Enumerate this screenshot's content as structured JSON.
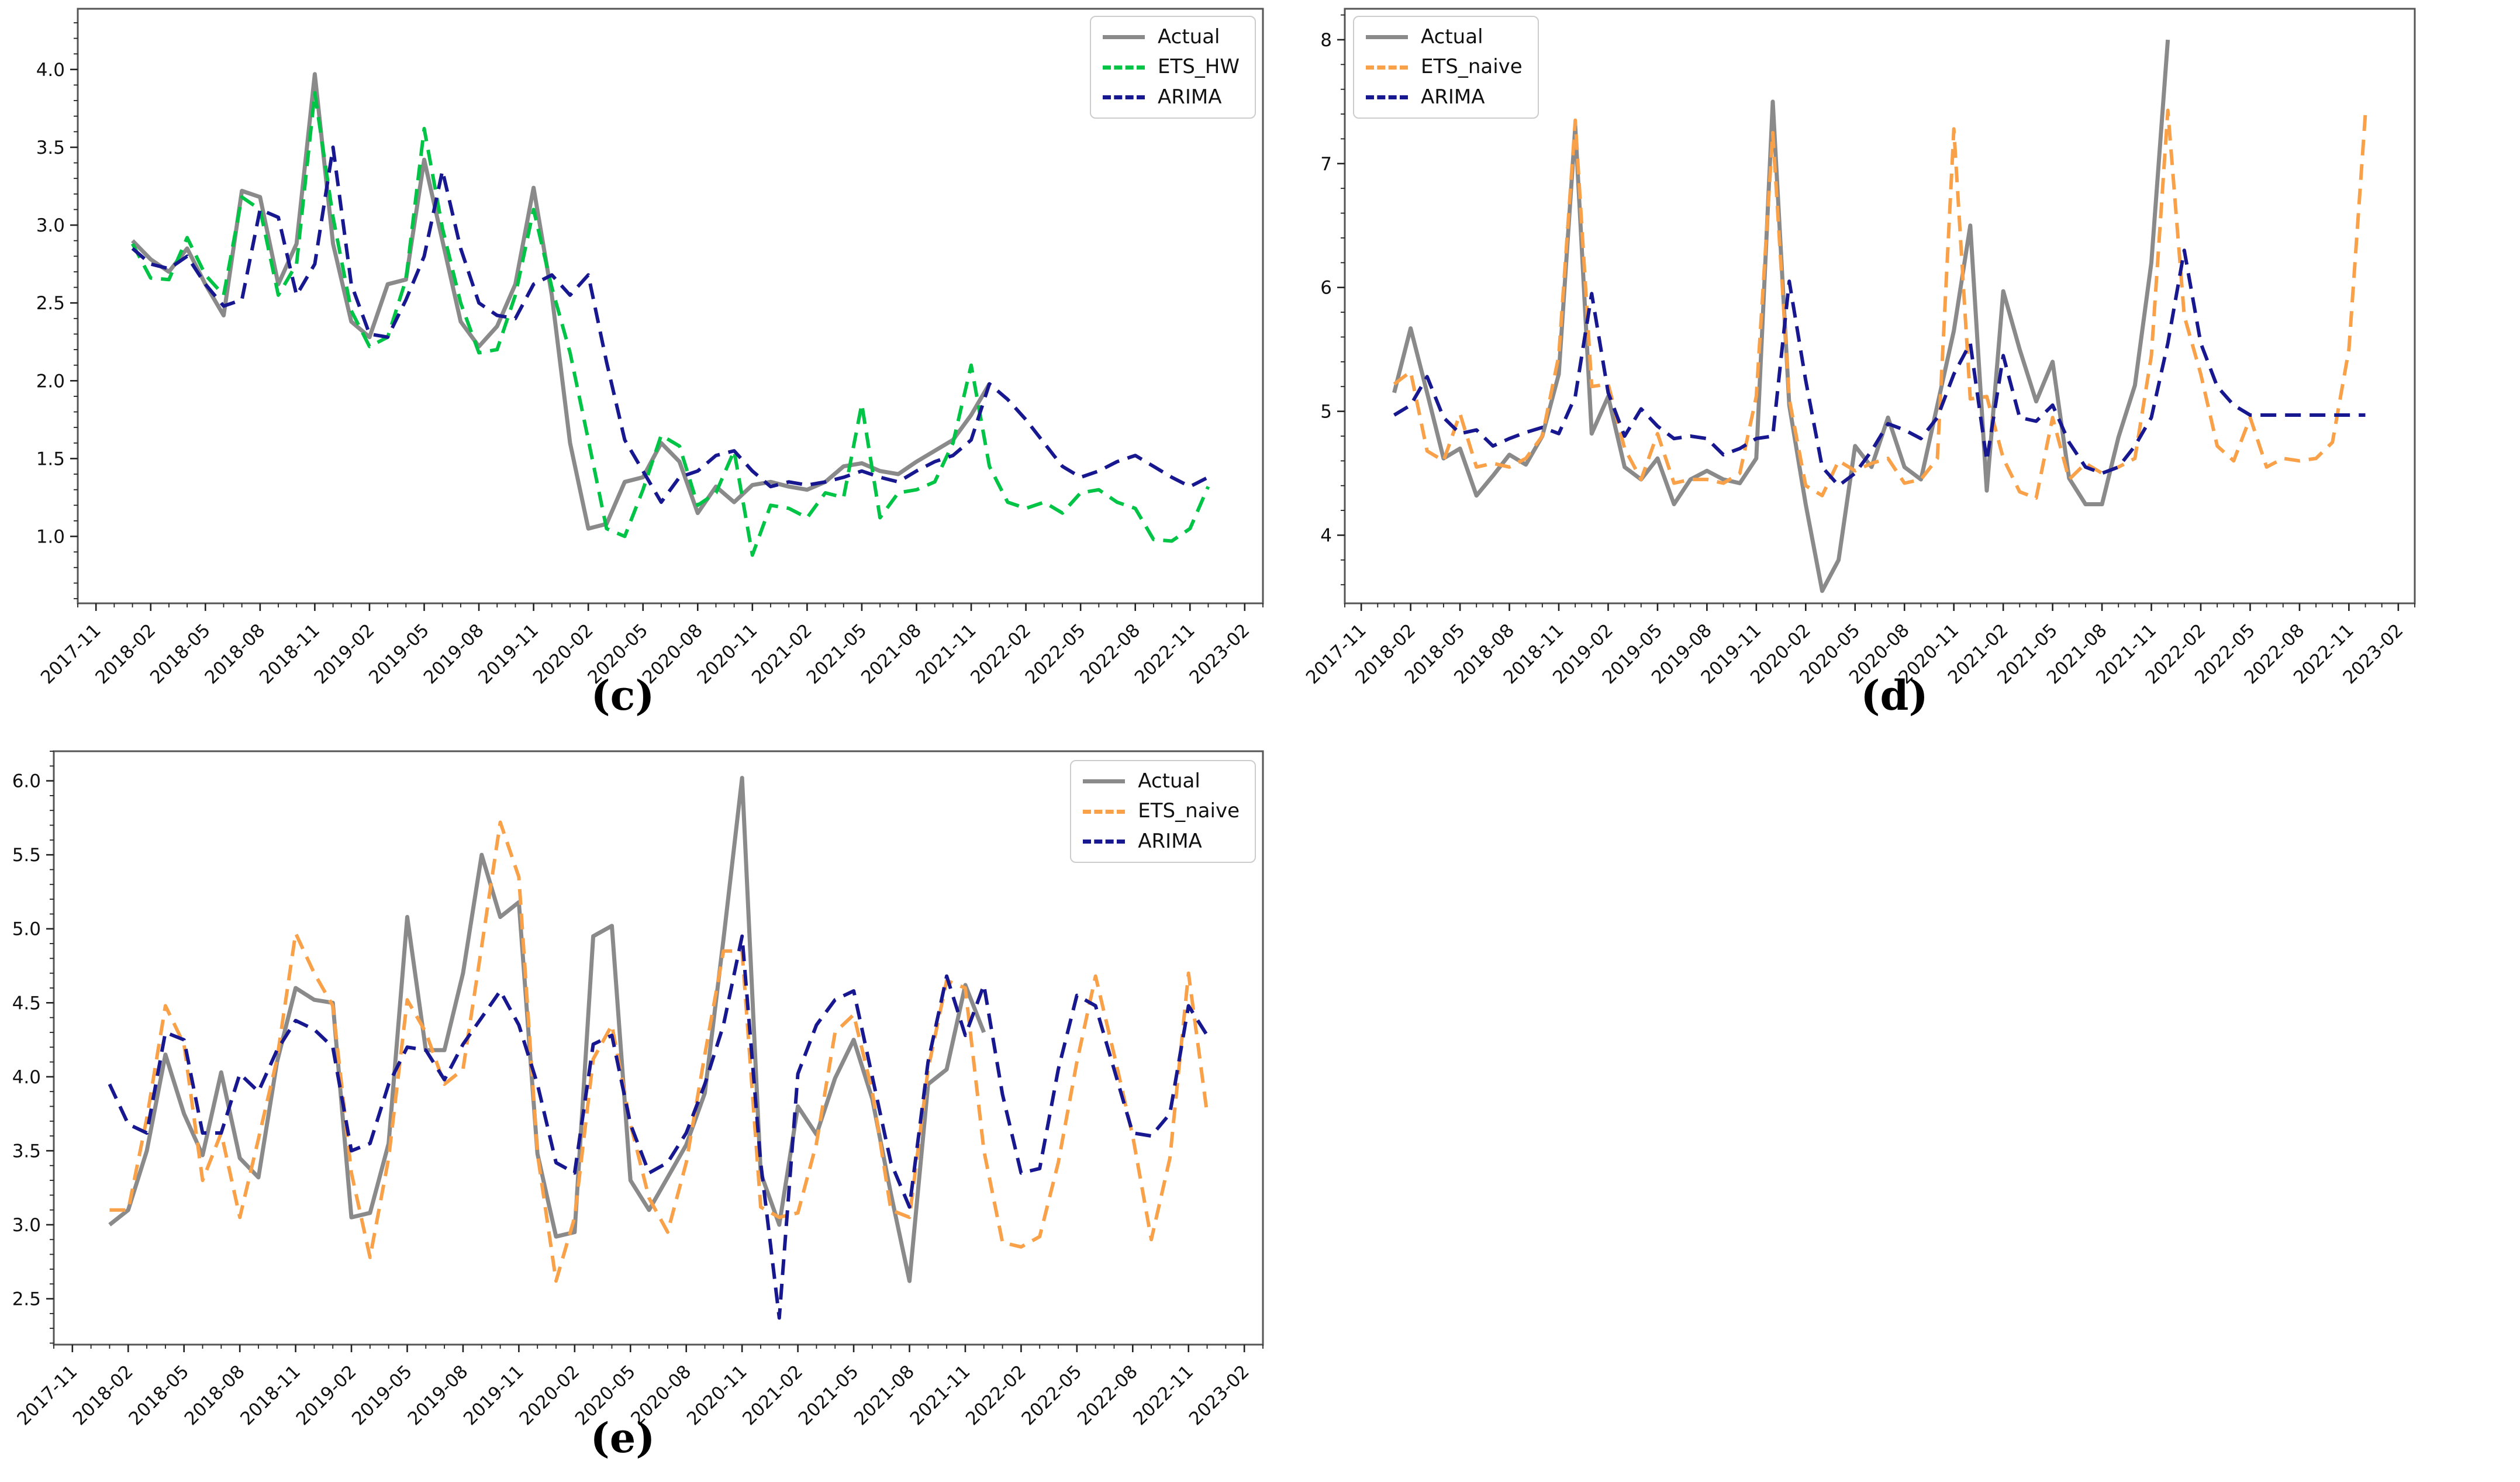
{
  "page": {
    "background": "#ffffff"
  },
  "chart_data": [
    {
      "id": "c",
      "type": "line",
      "caption": "(c)",
      "legend_position": "top-right",
      "xlabel": "",
      "ylabel": "",
      "x_tick_labels": [
        "2017-11",
        "2018-02",
        "2018-05",
        "2018-08",
        "2018-11",
        "2019-02",
        "2019-05",
        "2019-08",
        "2019-11",
        "2020-02",
        "2020-05",
        "2020-08",
        "2020-11",
        "2021-02",
        "2021-05",
        "2021-08",
        "2021-11",
        "2022-02",
        "2022-05",
        "2022-08",
        "2022-11",
        "2023-02"
      ],
      "x_view": [
        -1,
        64
      ],
      "ylim": [
        0.57,
        4.39
      ],
      "y_ticks": [
        "1.0",
        "1.5",
        "2.0",
        "2.5",
        "3.0",
        "3.5",
        "4.0"
      ],
      "y_minor_step": 0.1,
      "grid": false,
      "series": [
        {
          "name": "Actual",
          "color": "#8a8a8a",
          "style": "solid",
          "x_start": "2018-01",
          "x_start_month": 2,
          "values": [
            2.9,
            2.78,
            2.7,
            2.85,
            2.62,
            2.42,
            3.22,
            3.18,
            2.62,
            2.88,
            3.97,
            2.88,
            2.38,
            2.28,
            2.62,
            2.65,
            3.42,
            2.9,
            2.38,
            2.22,
            2.35,
            2.62,
            3.24,
            2.55,
            1.6,
            1.05,
            1.08,
            1.35,
            1.38,
            1.6,
            1.48,
            1.15,
            1.32,
            1.22,
            1.33,
            1.35,
            1.32,
            1.3,
            1.35,
            1.45,
            1.47,
            1.42,
            1.4,
            1.48,
            1.55,
            1.62,
            1.78,
            1.98
          ]
        },
        {
          "name": "ETS_HW",
          "color": "#00c445",
          "style": "dashed",
          "x_start": "2018-01",
          "x_start_month": 2,
          "values": [
            2.88,
            2.66,
            2.65,
            2.92,
            2.68,
            2.55,
            3.18,
            3.1,
            2.55,
            2.75,
            3.85,
            3.05,
            2.45,
            2.22,
            2.28,
            2.65,
            3.62,
            2.98,
            2.5,
            2.18,
            2.2,
            2.55,
            3.1,
            2.6,
            2.18,
            1.62,
            1.05,
            1.0,
            1.3,
            1.65,
            1.58,
            1.2,
            1.28,
            1.55,
            0.88,
            1.2,
            1.18,
            1.12,
            1.28,
            1.25,
            1.85,
            1.12,
            1.28,
            1.3,
            1.35,
            1.6,
            2.1,
            1.45,
            1.22,
            1.18,
            1.22,
            1.15,
            1.28,
            1.3,
            1.22,
            1.18,
            0.98,
            0.97,
            1.05,
            1.32
          ]
        },
        {
          "name": "ARIMA",
          "color": "#17178f",
          "style": "dashed",
          "x_start": "2018-01",
          "x_start_month": 2,
          "values": [
            2.85,
            2.75,
            2.72,
            2.8,
            2.62,
            2.48,
            2.52,
            3.1,
            3.05,
            2.55,
            2.75,
            3.5,
            2.62,
            2.3,
            2.28,
            2.52,
            2.8,
            3.35,
            2.85,
            2.5,
            2.42,
            2.4,
            2.62,
            2.68,
            2.55,
            2.68,
            2.12,
            1.62,
            1.42,
            1.22,
            1.38,
            1.42,
            1.52,
            1.55,
            1.42,
            1.32,
            1.35,
            1.33,
            1.35,
            1.38,
            1.42,
            1.38,
            1.35,
            1.42,
            1.48,
            1.52,
            1.62,
            1.98,
            1.88,
            1.75,
            1.6,
            1.45,
            1.38,
            1.42,
            1.48,
            1.52,
            1.45,
            1.38,
            1.32,
            1.38
          ]
        }
      ]
    },
    {
      "id": "d",
      "type": "line",
      "caption": "(d)",
      "legend_position": "top-left",
      "xlabel": "",
      "ylabel": "",
      "x_tick_labels": [
        "2017-11",
        "2018-02",
        "2018-05",
        "2018-08",
        "2018-11",
        "2019-02",
        "2019-05",
        "2019-08",
        "2019-11",
        "2020-02",
        "2020-05",
        "2020-08",
        "2020-11",
        "2021-02",
        "2021-05",
        "2021-08",
        "2021-11",
        "2022-02",
        "2022-05",
        "2022-08",
        "2022-11",
        "2023-02"
      ],
      "x_view": [
        -1,
        64
      ],
      "ylim": [
        3.45,
        8.25
      ],
      "y_ticks": [
        "4",
        "5",
        "6",
        "7",
        "8"
      ],
      "y_minor_step": 0.2,
      "grid": false,
      "series": [
        {
          "name": "Actual",
          "color": "#8a8a8a",
          "style": "solid",
          "x_start": "2018-01",
          "x_start_month": 2,
          "values": [
            5.15,
            5.67,
            5.15,
            4.62,
            4.7,
            4.32,
            4.48,
            4.65,
            4.57,
            4.8,
            5.3,
            7.3,
            4.82,
            5.12,
            4.55,
            4.45,
            4.62,
            4.25,
            4.45,
            4.52,
            4.45,
            4.42,
            4.62,
            7.5,
            5.05,
            4.25,
            3.55,
            3.8,
            4.72,
            4.55,
            4.95,
            4.55,
            4.45,
            5.05,
            5.65,
            6.5,
            4.36,
            5.97,
            5.5,
            5.08,
            5.4,
            4.46,
            4.25,
            4.25,
            4.79,
            5.21,
            6.2,
            8.0
          ]
        },
        {
          "name": "ETS_naive",
          "color": "#f9a148",
          "style": "dashed",
          "x_start": "2018-01",
          "x_start_month": 2,
          "values": [
            5.22,
            5.32,
            4.68,
            4.6,
            4.98,
            4.55,
            4.58,
            4.55,
            4.62,
            4.8,
            5.45,
            7.35,
            5.2,
            5.22,
            4.7,
            4.45,
            4.82,
            4.42,
            4.45,
            4.45,
            4.42,
            4.5,
            5.12,
            7.25,
            5.1,
            4.4,
            4.32,
            4.6,
            4.52,
            4.58,
            4.62,
            4.42,
            4.45,
            4.62,
            7.28,
            5.1,
            5.12,
            4.62,
            4.35,
            4.3,
            4.95,
            4.45,
            4.58,
            4.5,
            4.55,
            4.62,
            5.45,
            7.43,
            5.77,
            5.3,
            4.72,
            4.6,
            4.95,
            4.55,
            4.62,
            4.6,
            4.62,
            4.75,
            5.5,
            7.4
          ]
        },
        {
          "name": "ARIMA",
          "color": "#17178f",
          "style": "dashed",
          "x_start": "2018-01",
          "x_start_month": 2,
          "values": [
            4.97,
            5.05,
            5.28,
            4.95,
            4.82,
            4.85,
            4.72,
            4.78,
            4.83,
            4.87,
            4.82,
            5.12,
            5.95,
            5.15,
            4.8,
            5.02,
            4.88,
            4.78,
            4.8,
            4.78,
            4.65,
            4.7,
            4.78,
            4.8,
            6.05,
            5.25,
            4.55,
            4.4,
            4.5,
            4.68,
            4.9,
            4.85,
            4.78,
            4.95,
            5.3,
            5.55,
            4.6,
            5.45,
            4.95,
            4.92,
            5.05,
            4.75,
            4.55,
            4.5,
            4.55,
            4.72,
            4.95,
            5.55,
            6.3,
            5.55,
            5.2,
            5.05,
            4.97,
            4.97,
            4.97,
            4.97,
            4.97,
            4.97,
            4.97,
            4.97
          ]
        }
      ]
    },
    {
      "id": "e",
      "type": "line",
      "caption": "(e)",
      "legend_position": "top-right",
      "xlabel": "",
      "ylabel": "",
      "x_tick_labels": [
        "2017-11",
        "2018-02",
        "2018-05",
        "2018-08",
        "2018-11",
        "2019-02",
        "2019-05",
        "2019-08",
        "2019-11",
        "2020-02",
        "2020-05",
        "2020-08",
        "2020-11",
        "2021-02",
        "2021-05",
        "2021-08",
        "2021-11",
        "2022-02",
        "2022-05",
        "2022-08",
        "2022-11",
        "2023-02"
      ],
      "x_view": [
        -1,
        64
      ],
      "ylim": [
        2.19,
        6.2
      ],
      "y_ticks": [
        "2.5",
        "3.0",
        "3.5",
        "4.0",
        "4.5",
        "5.0",
        "5.5",
        "6.0"
      ],
      "y_minor_step": 0.1,
      "grid": false,
      "series": [
        {
          "name": "Actual",
          "color": "#8a8a8a",
          "style": "solid",
          "x_start": "2018-01",
          "x_start_month": 2,
          "values": [
            3.0,
            3.1,
            3.5,
            4.15,
            3.75,
            3.47,
            4.03,
            3.45,
            3.32,
            4.1,
            4.6,
            4.52,
            4.5,
            3.05,
            3.08,
            3.55,
            5.08,
            4.18,
            4.18,
            4.7,
            5.5,
            5.08,
            5.18,
            3.48,
            2.92,
            2.95,
            4.95,
            5.02,
            3.3,
            3.1,
            3.32,
            3.54,
            3.89,
            4.93,
            6.02,
            3.35,
            3.0,
            3.8,
            3.61,
            3.99,
            4.25,
            3.85,
            3.21,
            2.62,
            3.95,
            4.05,
            4.62,
            4.3
          ]
        },
        {
          "name": "ETS_naive",
          "color": "#f9a148",
          "style": "dashed",
          "x_start": "2018-01",
          "x_start_month": 2,
          "values": [
            3.1,
            3.1,
            3.72,
            4.48,
            4.22,
            3.3,
            3.62,
            3.05,
            3.58,
            4.12,
            4.97,
            4.7,
            4.48,
            3.35,
            2.78,
            3.45,
            4.52,
            4.3,
            3.95,
            4.05,
            4.88,
            5.72,
            5.35,
            3.48,
            2.62,
            3.05,
            4.12,
            4.35,
            3.68,
            3.18,
            2.95,
            3.42,
            4.15,
            4.85,
            4.85,
            3.12,
            3.05,
            3.08,
            3.55,
            4.3,
            4.42,
            3.9,
            3.1,
            3.05,
            4.05,
            4.65,
            4.6,
            3.5,
            2.88,
            2.85,
            2.92,
            3.42,
            4.1,
            4.68,
            4.15,
            3.6,
            2.9,
            3.45,
            4.7,
            3.75
          ]
        },
        {
          "name": "ARIMA",
          "color": "#17178f",
          "style": "dashed",
          "x_start": "2018-01",
          "x_start_month": 2,
          "values": [
            3.95,
            3.68,
            3.62,
            4.3,
            4.25,
            3.62,
            3.62,
            4.02,
            3.9,
            4.18,
            4.38,
            4.32,
            4.2,
            3.5,
            3.55,
            3.95,
            4.2,
            4.18,
            3.98,
            4.22,
            4.4,
            4.58,
            4.35,
            3.95,
            3.42,
            3.35,
            4.22,
            4.28,
            3.68,
            3.35,
            3.42,
            3.62,
            3.95,
            4.35,
            4.95,
            3.42,
            2.37,
            4.02,
            4.35,
            4.52,
            4.58,
            4.0,
            3.42,
            3.12,
            4.1,
            4.68,
            4.28,
            4.62,
            3.88,
            3.35,
            3.38,
            4.05,
            4.55,
            4.48,
            4.05,
            3.62,
            3.6,
            3.75,
            4.48,
            4.28
          ]
        }
      ]
    }
  ]
}
